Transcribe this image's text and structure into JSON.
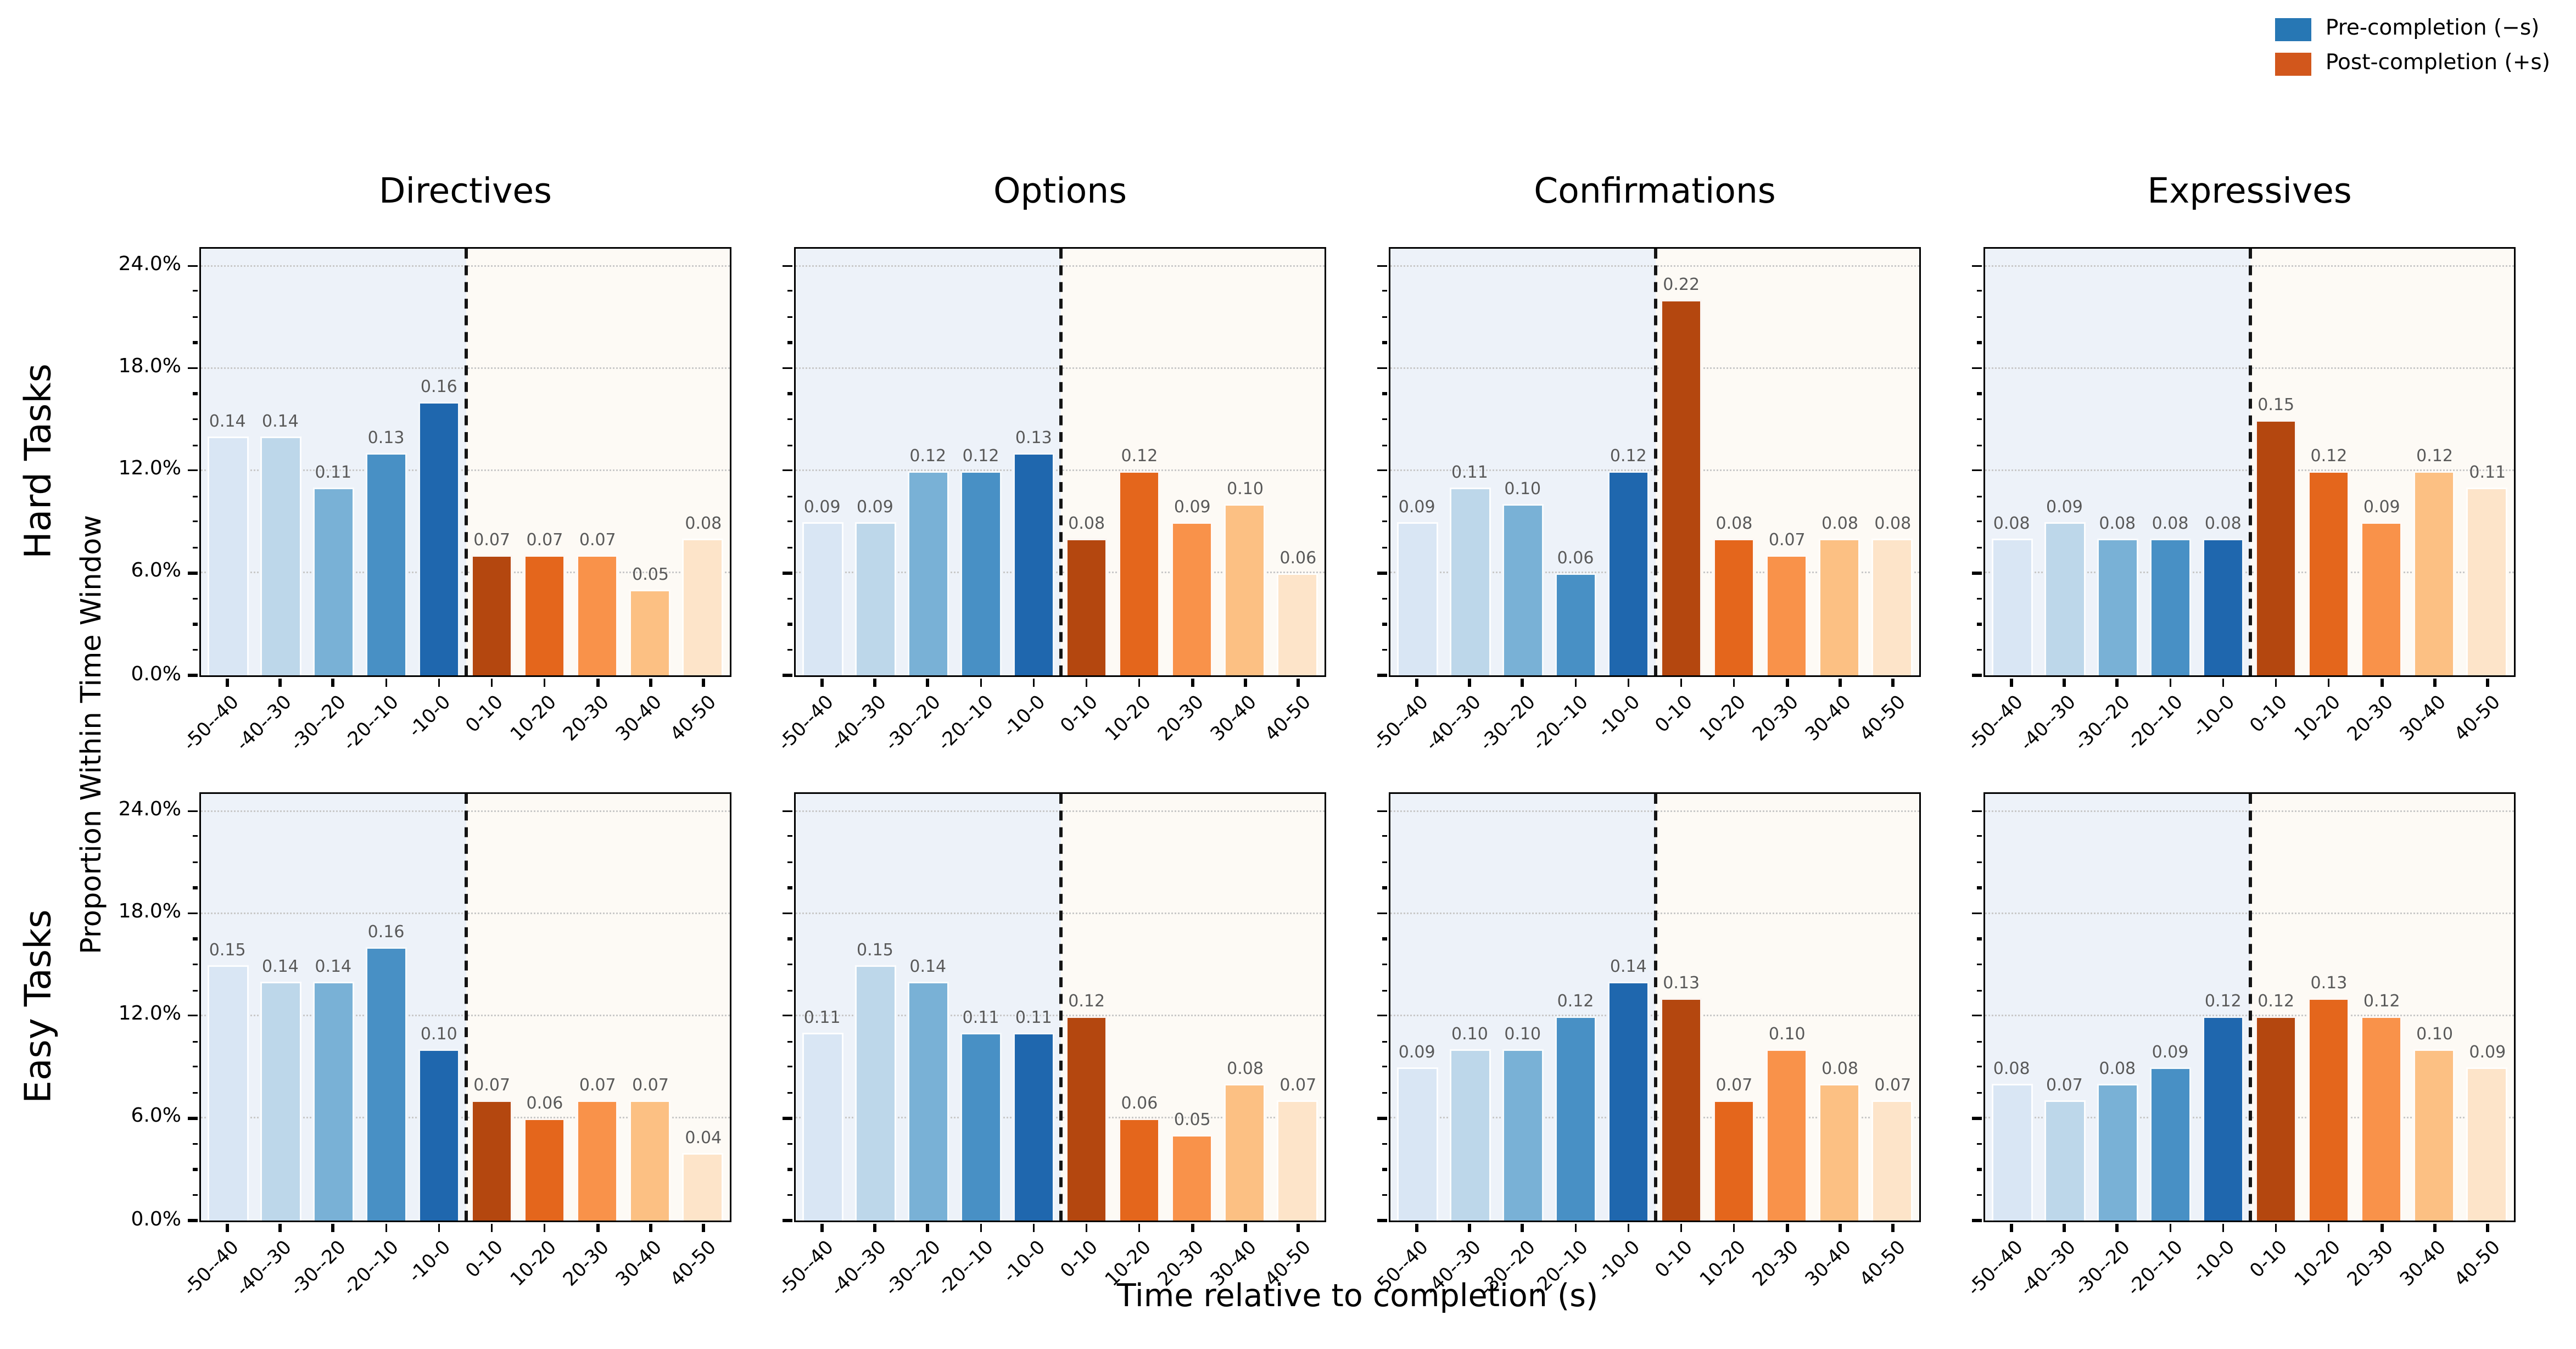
{
  "chart_data": {
    "type": "bar",
    "xlabel": "Time relative to completion (s)",
    "ylabel": "Proportion Within Time Window",
    "rows": [
      "Hard Tasks",
      "Easy Tasks"
    ],
    "cols": [
      "Directives",
      "Options",
      "Confirmations",
      "Expressives"
    ],
    "categories": [
      "-50--40",
      "-40--30",
      "-30--20",
      "-20--10",
      "-10-0",
      "0-10",
      "10-20",
      "20-30",
      "30-40",
      "40-50"
    ],
    "ytick_labels": [
      "0.0%",
      "6.0%",
      "12.0%",
      "18.0%",
      "24.0%"
    ],
    "ytick_values": [
      0,
      0.06,
      0.12,
      0.18,
      0.24
    ],
    "ylim": [
      0,
      0.25
    ],
    "grid": "dotted horizontal at yticks",
    "legend_position": "upper right",
    "subplots": [
      {
        "row": "Hard Tasks",
        "col": "Directives",
        "values": [
          0.14,
          0.14,
          0.11,
          0.13,
          0.16,
          0.07,
          0.07,
          0.07,
          0.05,
          0.08
        ]
      },
      {
        "row": "Hard Tasks",
        "col": "Options",
        "values": [
          0.09,
          0.09,
          0.12,
          0.12,
          0.13,
          0.08,
          0.12,
          0.09,
          0.1,
          0.06
        ]
      },
      {
        "row": "Hard Tasks",
        "col": "Confirmations",
        "values": [
          0.09,
          0.11,
          0.1,
          0.06,
          0.12,
          0.22,
          0.08,
          0.07,
          0.08,
          0.08
        ]
      },
      {
        "row": "Hard Tasks",
        "col": "Expressives",
        "values": [
          0.08,
          0.09,
          0.08,
          0.08,
          0.08,
          0.15,
          0.12,
          0.09,
          0.12,
          0.11
        ]
      },
      {
        "row": "Easy Tasks",
        "col": "Directives",
        "values": [
          0.15,
          0.14,
          0.14,
          0.16,
          0.1,
          0.07,
          0.06,
          0.07,
          0.07,
          0.04
        ]
      },
      {
        "row": "Easy Tasks",
        "col": "Options",
        "values": [
          0.11,
          0.15,
          0.14,
          0.11,
          0.11,
          0.12,
          0.06,
          0.05,
          0.08,
          0.07
        ]
      },
      {
        "row": "Easy Tasks",
        "col": "Confirmations",
        "values": [
          0.09,
          0.1,
          0.1,
          0.12,
          0.14,
          0.13,
          0.07,
          0.1,
          0.08,
          0.07
        ]
      },
      {
        "row": "Easy Tasks",
        "col": "Expressives",
        "values": [
          0.08,
          0.07,
          0.08,
          0.09,
          0.12,
          0.12,
          0.13,
          0.12,
          0.1,
          0.09
        ]
      }
    ],
    "bar_colors_pre": [
      "#d9e6f4",
      "#bdd7ea",
      "#79b1d6",
      "#4890c5",
      "#1f67ae"
    ],
    "bar_colors_post": [
      "#b4470f",
      "#e4661c",
      "#f9924a",
      "#fcc083",
      "#fde4c9"
    ],
    "background_pre": "#edf2f9",
    "background_post": "#fdfaf5",
    "zero_line": "black dashed vertical at center",
    "legend": [
      {
        "label": "Pre-completion (−s)",
        "color": "#2777b4"
      },
      {
        "label": "Post-completion (+s)",
        "color": "#d2571c"
      }
    ]
  }
}
